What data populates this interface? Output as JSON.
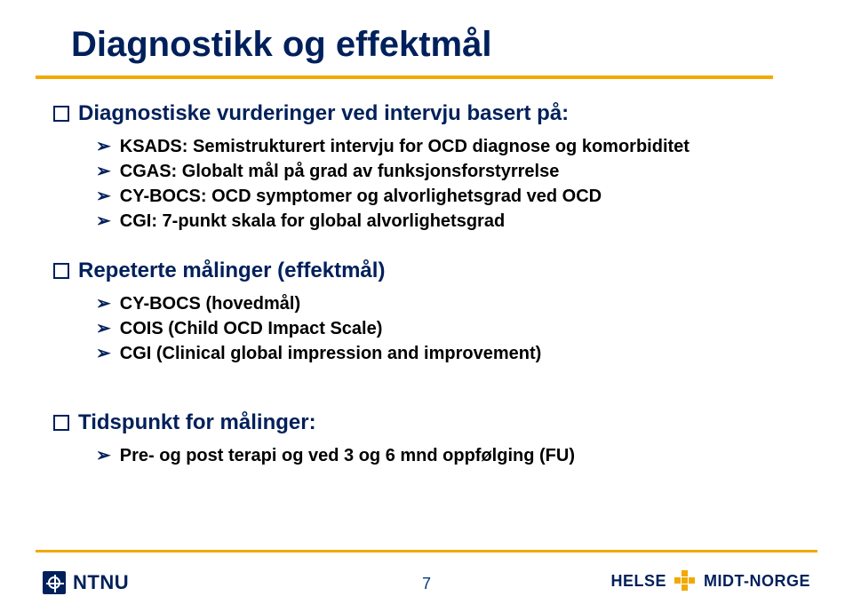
{
  "title": "Diagnostikk og effektmål",
  "accent_color": "#f2a900",
  "heading_color": "#00205b",
  "body_color": "#000000",
  "section1": {
    "heading": "Diagnostiske vurderinger ved intervju basert på:",
    "items": [
      "KSADS: Semistrukturert intervju for OCD diagnose og komorbiditet",
      "CGAS: Globalt mål på grad av funksjonsforstyrrelse",
      "CY-BOCS: OCD symptomer og alvorlighetsgrad ved OCD",
      "CGI: 7-punkt skala for global alvorlighetsgrad"
    ]
  },
  "section2": {
    "heading": "Repeterte målinger (effektmål)",
    "items": [
      "CY-BOCS (hovedmål)",
      "COIS (Child OCD Impact Scale)",
      "CGI (Clinical global impression and improvement)"
    ]
  },
  "section3": {
    "heading": "Tidspunkt for målinger:",
    "items": [
      "Pre- og post terapi og ved 3 og 6 mnd oppfølging (FU)"
    ]
  },
  "footer": {
    "left_logo_text": "NTNU",
    "page_number": "7",
    "right_logo_left": "HELSE",
    "right_logo_right": "MIDT-NORGE"
  }
}
